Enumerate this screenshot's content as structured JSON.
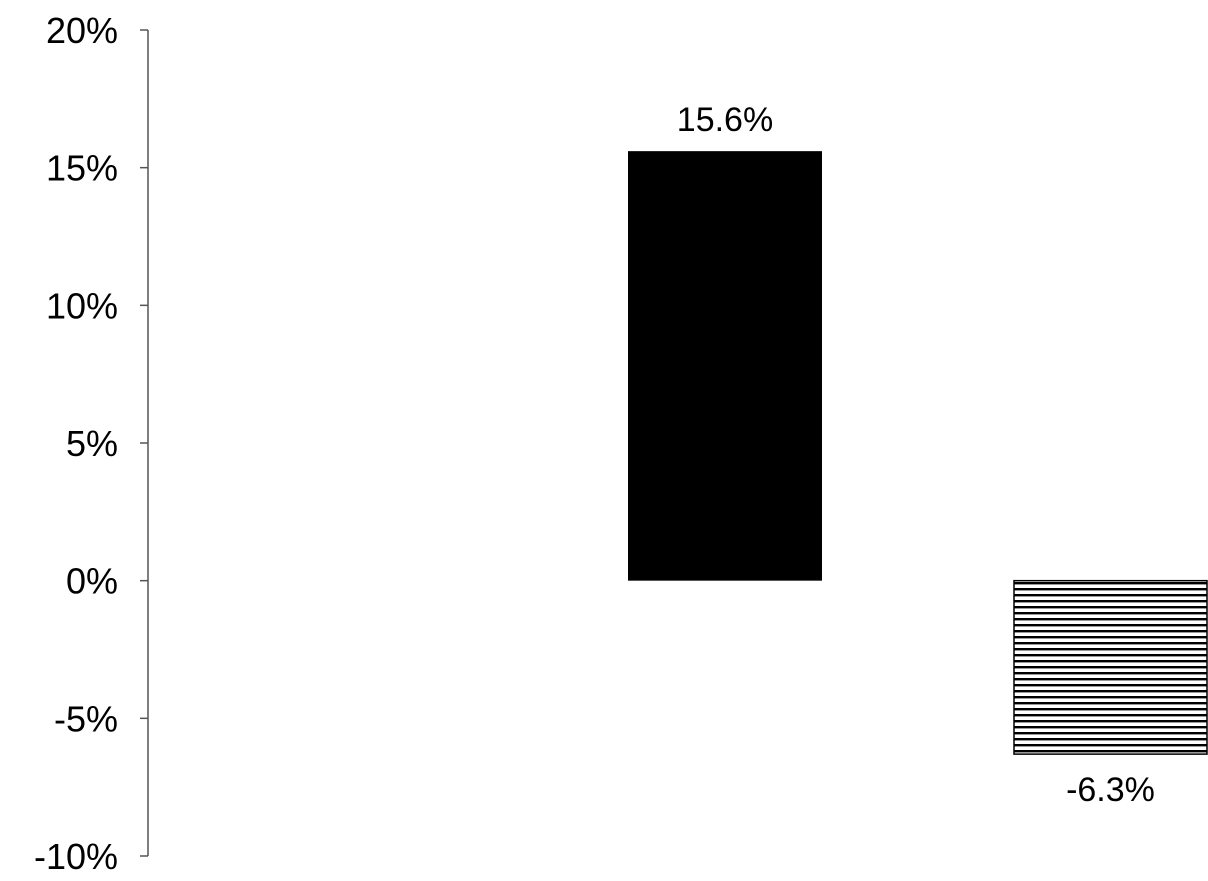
{
  "chart_data": {
    "type": "bar",
    "title": "",
    "xlabel": "",
    "ylabel": "",
    "ylim": [
      -10,
      20
    ],
    "y_ticks": [
      20,
      15,
      10,
      5,
      0,
      -5,
      -10
    ],
    "y_tick_labels": [
      "20%",
      "15%",
      "10%",
      "5%",
      "0%",
      "-5%",
      "-10%"
    ],
    "grid": false,
    "legend": "none",
    "bars": [
      {
        "value": 15.6,
        "label": "15.6%",
        "fill": "#000000",
        "pattern": "solid"
      },
      {
        "value": -6.3,
        "label": "-6.3%",
        "fill": "#ffffff",
        "pattern": "horizontal-stripes"
      }
    ],
    "colors": {
      "axis": "#555555",
      "bar_solid": "#000000",
      "stripe": "#000000"
    }
  }
}
